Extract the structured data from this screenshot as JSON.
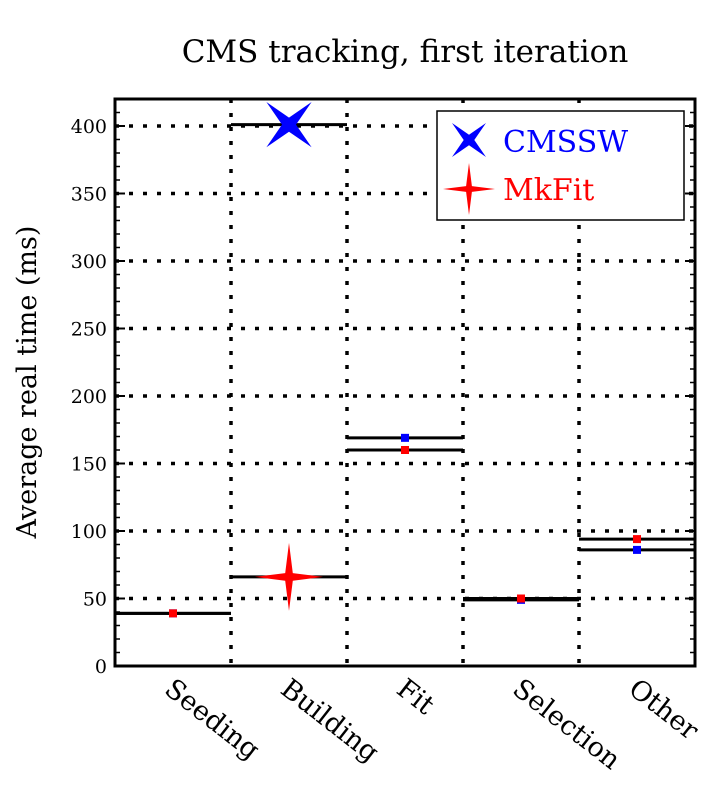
{
  "chart_data": {
    "type": "scatter",
    "title": "CMS tracking, first iteration",
    "xlabel": "",
    "ylabel": "Average real time (ms)",
    "categories": [
      "Seeding",
      "Building",
      "Fit",
      "Selection",
      "Other"
    ],
    "ylim": [
      0,
      420
    ],
    "yticks": [
      0,
      50,
      100,
      150,
      200,
      250,
      300,
      350,
      400
    ],
    "grid": true,
    "legend_position": "top-right",
    "series": [
      {
        "name": "CMSSW",
        "color": "#0000ff",
        "marker": "x-star",
        "values": [
          39,
          401,
          169,
          49,
          86
        ]
      },
      {
        "name": "MkFit",
        "color": "#ff0000",
        "marker": "4-point-star",
        "values": [
          39,
          66,
          160,
          50,
          94
        ]
      }
    ]
  }
}
